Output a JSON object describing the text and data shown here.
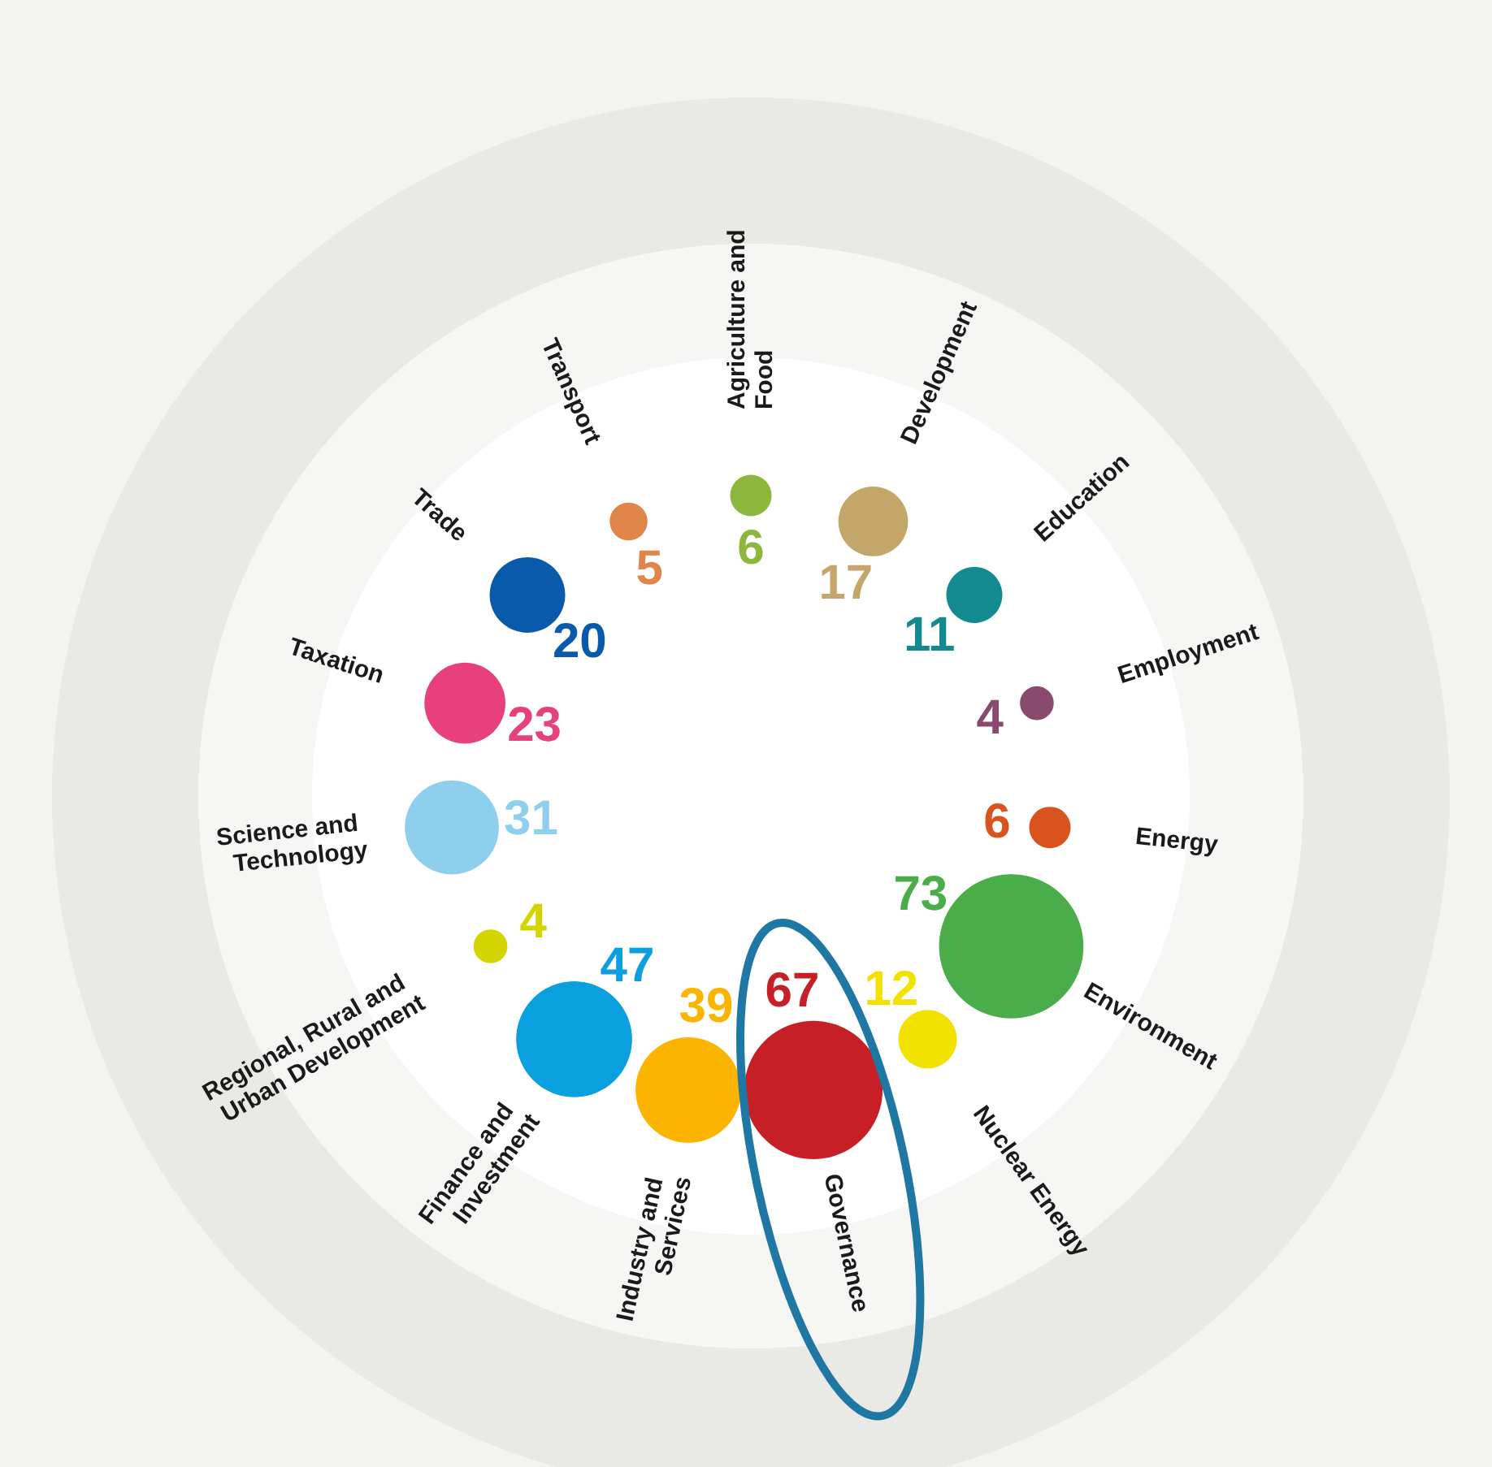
{
  "chart_data": {
    "type": "other",
    "categories": [
      "Agriculture and Food",
      "Development",
      "Education",
      "Employment",
      "Energy",
      "Environment",
      "Nuclear Energy",
      "Governance",
      "Industry and Services",
      "Finance and Investment",
      "Regional, Rural and Urban Development",
      "Science and Technology",
      "Taxation",
      "Trade",
      "Transport"
    ],
    "values": [
      6,
      17,
      11,
      4,
      6,
      73,
      12,
      67,
      39,
      47,
      4,
      31,
      23,
      20,
      5
    ],
    "colors": [
      "#8db63c",
      "#c4a66a",
      "#138a8f",
      "#8a4a6e",
      "#d9531e",
      "#4aad4a",
      "#f2e200",
      "#c62026",
      "#fbb400",
      "#0aa0e0",
      "#d4d400",
      "#8fcfee",
      "#e8407c",
      "#0a5aab",
      "#e0864a"
    ],
    "data_labels": true
  }
}
